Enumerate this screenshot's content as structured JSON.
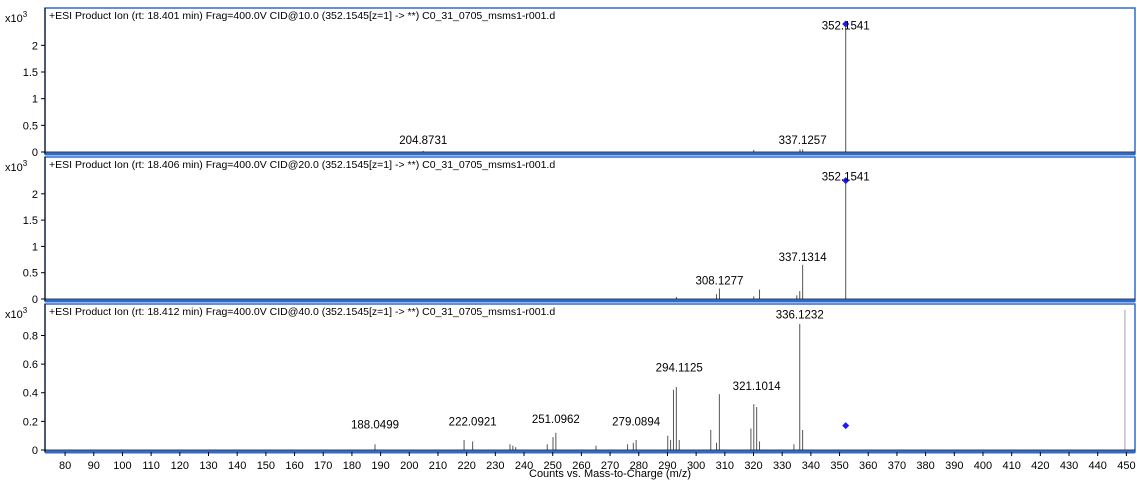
{
  "chart_data": [
    {
      "type": "bar",
      "title": "+ESI Product Ion (rt: 18.401 min) Frag=400.0V CID@10.0 (352.1545[z=1] -> **) C0_31_0705_msms1-r001.d",
      "y_multiplier": "x10",
      "y_multiplier_exp": "3",
      "ylim": [
        0,
        2.7
      ],
      "yticks": [
        0,
        0.5,
        1,
        1.5,
        2
      ],
      "ytick_labels": [
        "0",
        "0.5",
        "1",
        "1.5",
        "2"
      ],
      "xlim": [
        73,
        453
      ],
      "peaks_x": [
        204.87,
        320.1,
        336.2,
        337.13,
        352.15
      ],
      "peaks_y": [
        0.02,
        0.04,
        0.05,
        0.05,
        2.4
      ],
      "labels": [
        {
          "x": 204.8731,
          "y": 0.15,
          "text": "204.8731"
        },
        {
          "x": 337.1257,
          "y": 0.15,
          "text": "337.1257"
        },
        {
          "x": 352.1541,
          "y": 2.3,
          "text": "352.1541"
        }
      ],
      "precursor_marker": {
        "x": 352.15,
        "y": 2.4
      }
    },
    {
      "type": "bar",
      "title": "+ESI Product Ion (rt: 18.406 min) Frag=400.0V CID@20.0 (352.1545[z=1] -> **) C0_31_0705_msms1-r001.d",
      "y_multiplier": "x10",
      "y_multiplier_exp": "3",
      "ylim": [
        0,
        2.7
      ],
      "yticks": [
        0,
        0.5,
        1,
        1.5,
        2
      ],
      "ytick_labels": [
        "0",
        "0.5",
        "1",
        "1.5",
        "2"
      ],
      "xlim": [
        73,
        453
      ],
      "peaks_x": [
        293.1,
        307.1,
        308.13,
        320.1,
        322.1,
        335.1,
        336.12,
        337.13,
        352.15
      ],
      "peaks_y": [
        0.04,
        0.09,
        0.2,
        0.05,
        0.18,
        0.07,
        0.15,
        0.65,
        2.3
      ],
      "labels": [
        {
          "x": 308.1277,
          "y": 0.28,
          "text": "308.1277"
        },
        {
          "x": 337.1314,
          "y": 0.72,
          "text": "337.1314"
        },
        {
          "x": 352.1541,
          "y": 2.25,
          "text": "352.1541"
        }
      ],
      "precursor_marker": {
        "x": 352.15,
        "y": 2.25
      }
    },
    {
      "type": "bar",
      "title": "+ESI Product Ion (rt: 18.412 min) Frag=400.0V CID@40.0 (352.1545[z=1] -> **) C0_31_0705_msms1-r001.d",
      "y_multiplier": "x10",
      "y_multiplier_exp": "3",
      "ylim": [
        0,
        1.02
      ],
      "yticks": [
        0,
        0.2,
        0.4,
        0.6,
        0.8
      ],
      "ytick_labels": [
        "0",
        "0.2",
        "0.4",
        "0.6",
        "0.8"
      ],
      "xlim": [
        73,
        453
      ],
      "xticks": [
        80,
        90,
        100,
        110,
        120,
        130,
        140,
        150,
        160,
        170,
        180,
        190,
        200,
        210,
        220,
        230,
        240,
        250,
        260,
        270,
        280,
        290,
        300,
        310,
        320,
        330,
        340,
        350,
        360,
        370,
        380,
        390,
        400,
        410,
        420,
        430,
        440,
        450
      ],
      "xtick_labels": [
        "80",
        "90",
        "100",
        "110",
        "120",
        "130",
        "140",
        "150",
        "160",
        "170",
        "180",
        "190",
        "200",
        "210",
        "220",
        "230",
        "240",
        "250",
        "260",
        "270",
        "280",
        "290",
        "300",
        "310",
        "320",
        "330",
        "340",
        "350",
        "360",
        "370",
        "380",
        "390",
        "400",
        "410",
        "420",
        "430",
        "440",
        "450"
      ],
      "xlabel": "Counts vs. Mass-to-Charge (m/z)",
      "peaks_x": [
        188.05,
        219.1,
        222.09,
        235.1,
        236.1,
        237.1,
        248.1,
        250.1,
        251.1,
        265.1,
        276.1,
        278.1,
        279.09,
        290.1,
        291.1,
        292.1,
        293.1,
        294.11,
        305.1,
        307.1,
        308.1,
        319.1,
        320.1,
        321.1,
        322.1,
        334.1,
        336.12,
        337.13,
        449.5
      ],
      "peaks_y": [
        0.04,
        0.07,
        0.06,
        0.04,
        0.03,
        0.02,
        0.04,
        0.09,
        0.12,
        0.03,
        0.04,
        0.05,
        0.07,
        0.1,
        0.07,
        0.42,
        0.44,
        0.07,
        0.14,
        0.05,
        0.39,
        0.15,
        0.32,
        0.3,
        0.06,
        0.04,
        0.88,
        0.14,
        0.98
      ],
      "peak_colors": [
        "#555555",
        "#555555",
        "#555555",
        "#555555",
        "#555555",
        "#555555",
        "#555555",
        "#555555",
        "#555555",
        "#555555",
        "#555555",
        "#555555",
        "#555555",
        "#555555",
        "#555555",
        "#555555",
        "#555555",
        "#555555",
        "#555555",
        "#555555",
        "#555555",
        "#555555",
        "#555555",
        "#555555",
        "#555555",
        "#555555",
        "#555555",
        "#555555",
        "#a0a0a0"
      ],
      "labels": [
        {
          "x": 188.0499,
          "y": 0.15,
          "text": "188.0499"
        },
        {
          "x": 222.0921,
          "y": 0.17,
          "text": "222.0921"
        },
        {
          "x": 251.0962,
          "y": 0.19,
          "text": "251.0962"
        },
        {
          "x": 279.0894,
          "y": 0.17,
          "text": "279.0894"
        },
        {
          "x": 294.1125,
          "y": 0.55,
          "text": "294.1125"
        },
        {
          "x": 321.1014,
          "y": 0.42,
          "text": "321.1014"
        },
        {
          "x": 336.1232,
          "y": 0.92,
          "text": "336.1232"
        }
      ],
      "precursor_marker": {
        "x": 352.15,
        "y": 0.17
      }
    }
  ],
  "colors": {
    "frame": "#2e6bd1",
    "peak": "#555555",
    "marker": "#1a1aff",
    "axis": "#000000"
  }
}
